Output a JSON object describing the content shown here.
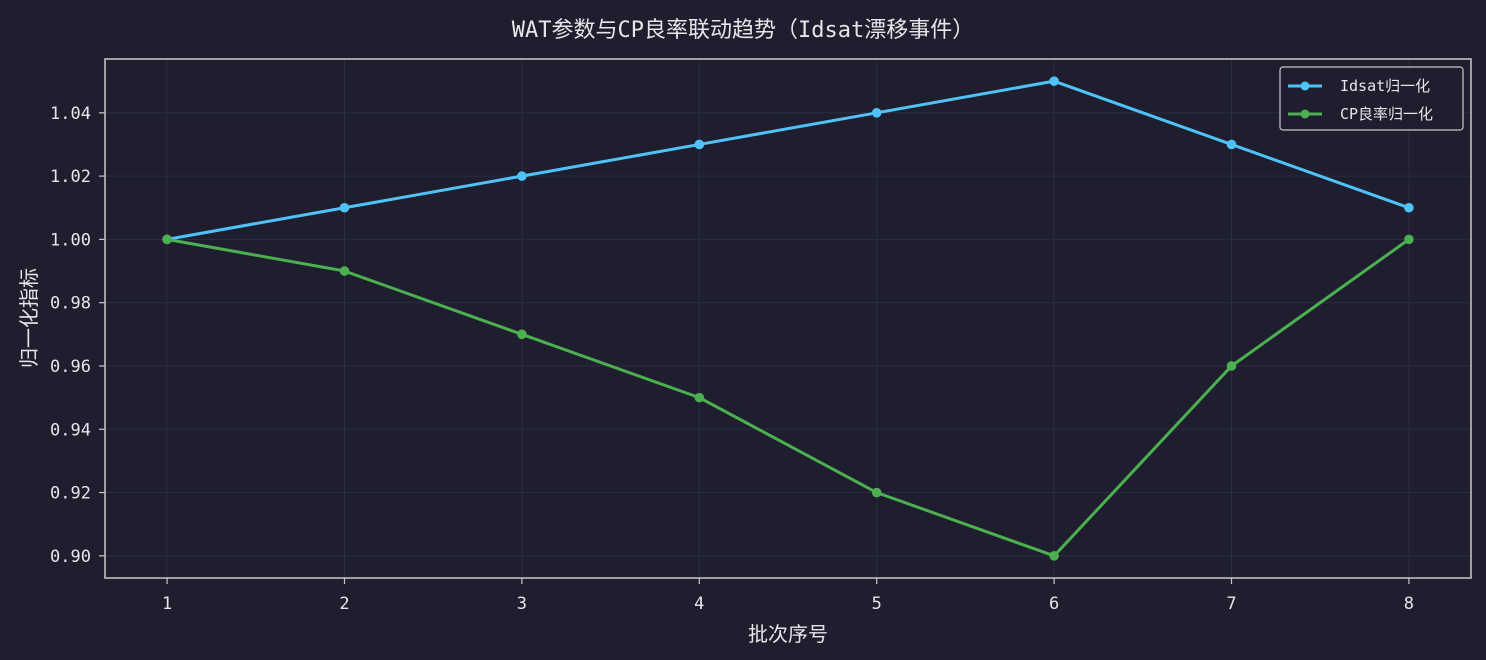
{
  "colors": {
    "background": "#1e1e2e",
    "plot_background": "#1e1e2e",
    "axis": "#c8c8cc",
    "grid": "#2c2c40",
    "text": "#e6e6ea"
  },
  "chart_data": {
    "type": "line",
    "title": "WAT参数与CP良率联动趋势（Idsat漂移事件）",
    "xlabel": "批次序号",
    "ylabel": "归一化指标",
    "x": [
      1,
      2,
      3,
      4,
      5,
      6,
      7,
      8
    ],
    "x_tick_labels": [
      "1",
      "2",
      "3",
      "4",
      "5",
      "6",
      "7",
      "8"
    ],
    "xlim": [
      0.65,
      8.35
    ],
    "ylim": [
      0.893,
      1.057
    ],
    "y_ticks": [
      0.9,
      0.92,
      0.94,
      0.96,
      0.98,
      1.0,
      1.02,
      1.04
    ],
    "y_tick_labels": [
      "0.90",
      "0.92",
      "0.94",
      "0.96",
      "0.98",
      "1.00",
      "1.02",
      "1.04"
    ],
    "grid": true,
    "legend_position": "top-right",
    "series": [
      {
        "name": "Idsat归一化",
        "color": "#4fc3f7",
        "marker": "circle",
        "values": [
          1.0,
          1.01,
          1.02,
          1.03,
          1.04,
          1.05,
          1.03,
          1.01
        ]
      },
      {
        "name": "CP良率归一化",
        "color": "#4caf50",
        "marker": "circle",
        "values": [
          1.0,
          0.99,
          0.97,
          0.95,
          0.92,
          0.9,
          0.96,
          1.0
        ]
      }
    ]
  }
}
